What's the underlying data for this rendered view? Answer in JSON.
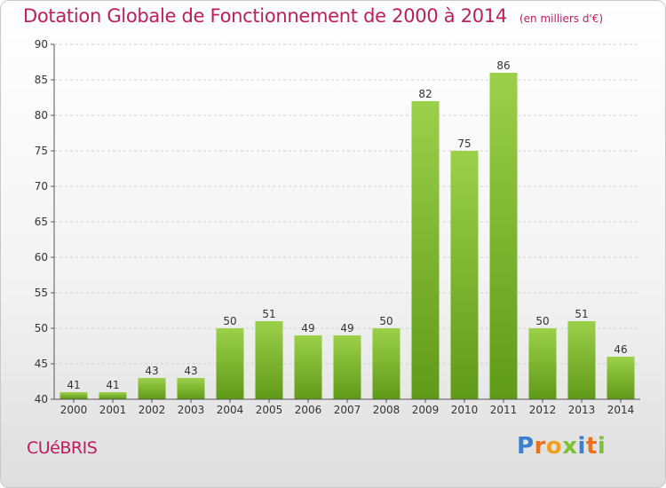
{
  "title": "Dotation Globale de Fonctionnement de 2000 à 2014",
  "unit_note": "(en milliers d'€)",
  "commune": "CUéBRIS",
  "logo": {
    "text": "Proxiti",
    "letter_colors": [
      "#3a7fd0",
      "#e9721c",
      "#f0a020",
      "#7cc234",
      "#3a7fd0",
      "#e9721c",
      "#7cc234"
    ]
  },
  "colors": {
    "title": "#c01d5a",
    "bar_light": "#9bd04a",
    "bar_dark": "#5f9a18",
    "grid": "#d0d0d0",
    "axis_text": "#333333"
  },
  "chart_data": {
    "type": "bar",
    "title": "Dotation Globale de Fonctionnement de 2000 à 2014",
    "xlabel": "",
    "ylabel": "",
    "ylim": [
      40,
      90
    ],
    "yticks": [
      40,
      45,
      50,
      55,
      60,
      65,
      70,
      75,
      80,
      85,
      90
    ],
    "grid": true,
    "categories": [
      "2000",
      "2001",
      "2002",
      "2003",
      "2004",
      "2005",
      "2006",
      "2007",
      "2008",
      "2009",
      "2010",
      "2011",
      "2012",
      "2013",
      "2014"
    ],
    "values": [
      41,
      41,
      43,
      43,
      50,
      51,
      49,
      49,
      50,
      82,
      75,
      86,
      50,
      51,
      46
    ]
  }
}
